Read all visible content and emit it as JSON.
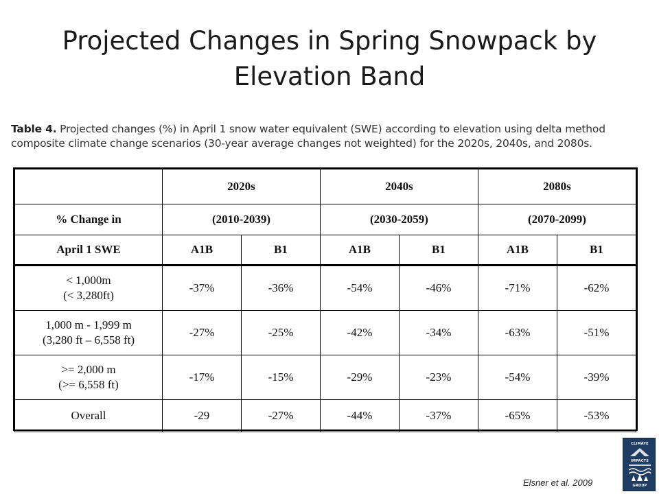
{
  "slide": {
    "title": "Projected Changes in Spring Snowpack by Elevation Band"
  },
  "caption": {
    "label": "Table 4.",
    "text": " Projected changes (%) in April 1 snow water equivalent (SWE) according to elevation using delta method composite climate change scenarios (30-year average changes not weighted) for the 2020s, 2040s, and 2080s."
  },
  "table": {
    "header_row1": [
      "2020s",
      "2040s",
      "2080s"
    ],
    "header_row2_label": "% Change in",
    "header_row2": [
      "(2010-2039)",
      "(2030-2059)",
      "(2070-2099)"
    ],
    "header_row3_label": "April 1 SWE",
    "header_row3": [
      "A1B",
      "B1",
      "A1B",
      "B1",
      "A1B",
      "B1"
    ],
    "rows": [
      {
        "label_line1": "< 1,000m",
        "label_line2": "(< 3,280ft)",
        "values": [
          "-37%",
          "-36%",
          "-54%",
          "-46%",
          "-71%",
          "-62%"
        ]
      },
      {
        "label_line1": "1,000 m - 1,999 m",
        "label_line2": "(3,280 ft – 6,558 ft)",
        "values": [
          "-27%",
          "-25%",
          "-42%",
          "-34%",
          "-63%",
          "-51%"
        ]
      },
      {
        "label_line1": ">= 2,000 m",
        "label_line2": "(>= 6,558 ft)",
        "values": [
          "-17%",
          "-15%",
          "-29%",
          "-23%",
          "-54%",
          "-39%"
        ]
      },
      {
        "label_line1": "Overall",
        "label_line2": "",
        "values": [
          "-29",
          "-27%",
          "-44%",
          "-37%",
          "-65%",
          "-53%"
        ]
      }
    ]
  },
  "source": "Elsner et al. 2009",
  "logo": {
    "line1": "CLIMATE",
    "line2": "IMPACTS",
    "line3": "GROUP",
    "color": "#1f3d63"
  }
}
